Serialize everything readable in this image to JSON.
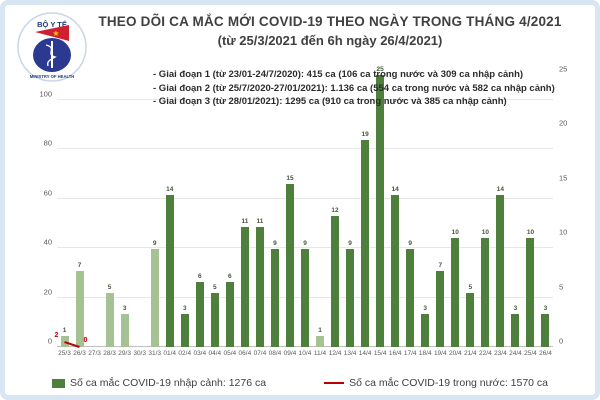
{
  "header": {
    "title": "THEO DÕI CA MẮC MỚI COVID-19 THEO NGÀY TRONG THÁNG 4/2021",
    "subtitle": "(từ 25/3/2021 đến 6h ngày 26/4/2021)"
  },
  "logo": {
    "top_text": "BỘ Y TẾ",
    "bottom_text": "MINISTRY OF HEALTH"
  },
  "annotations": [
    "- Giai đoạn 1 (từ 23/01-24/7/2020): 415 ca (106 ca trong nước và 309 ca nhập cảnh)",
    "- Giai đoạn 2 (từ 25/7/2020-27/01/2021): 1.136 ca (554 ca trong nước và 582 ca nhập cảnh)",
    "- Giai đoạn 3 (từ 28/01/2021): 1295 ca (910 ca trong nước và 385 ca nhập cảnh)"
  ],
  "chart_data": {
    "type": "bar",
    "title": "THEO DÕI CA MẮC MỚI COVID-19 THEO NGÀY TRONG THÁNG 4/2021",
    "categories": [
      "25/3",
      "26/3",
      "27/3",
      "28/3",
      "29/3",
      "30/3",
      "31/3",
      "01/4",
      "02/4",
      "03/4",
      "04/4",
      "05/4",
      "06/4",
      "07/4",
      "08/4",
      "09/4",
      "10/4",
      "11/4",
      "12/4",
      "13/4",
      "14/4",
      "15/4",
      "16/4",
      "17/4",
      "18/4",
      "19/4",
      "20/4",
      "21/4",
      "22/4",
      "23/4",
      "24/4",
      "25/4",
      "26/4"
    ],
    "series": [
      {
        "name": "Số ca mắc COVID-19 nhập cảnh",
        "render": "bar",
        "values": [
          1,
          7,
          0,
          5,
          3,
          0,
          9,
          14,
          3,
          6,
          5,
          6,
          11,
          11,
          9,
          15,
          9,
          1,
          12,
          9,
          19,
          25,
          14,
          9,
          3,
          7,
          10,
          5,
          10,
          14,
          3,
          10,
          3
        ],
        "color": "#4e7f3d",
        "color_light": "#a6c194",
        "light_days": [
          "25/3",
          "26/3",
          "28/3",
          "29/3",
          "31/3",
          "11/4"
        ]
      },
      {
        "name": "Số ca mắc COVID-19 trong nước",
        "render": "line",
        "color": "#c00000",
        "points": [
          {
            "date": "25/3",
            "value": 2
          },
          {
            "date": "26/3",
            "value": 0
          }
        ]
      }
    ],
    "left_axis": {
      "ticks": [
        0,
        20,
        40,
        60,
        80,
        100
      ],
      "max": 100
    },
    "right_axis": {
      "ticks": [
        0,
        5,
        10,
        15,
        20,
        25
      ],
      "max": 25
    },
    "grid": true,
    "legend_position": "bottom"
  },
  "legend": {
    "imported": {
      "label": "Số ca mắc COVID-19 nhập cảnh: 1276 ca",
      "color": "#4e7f3d"
    },
    "domestic": {
      "label": "Số ca mắc COVID-19 trong nước: 1570 ca",
      "color": "#c00000"
    }
  },
  "colors": {
    "bar_dark": "#4e7f3d",
    "bar_light": "#a6c194",
    "line_red": "#c00000",
    "frame_blue": "#d8e5f2",
    "title_gray": "#404040"
  }
}
